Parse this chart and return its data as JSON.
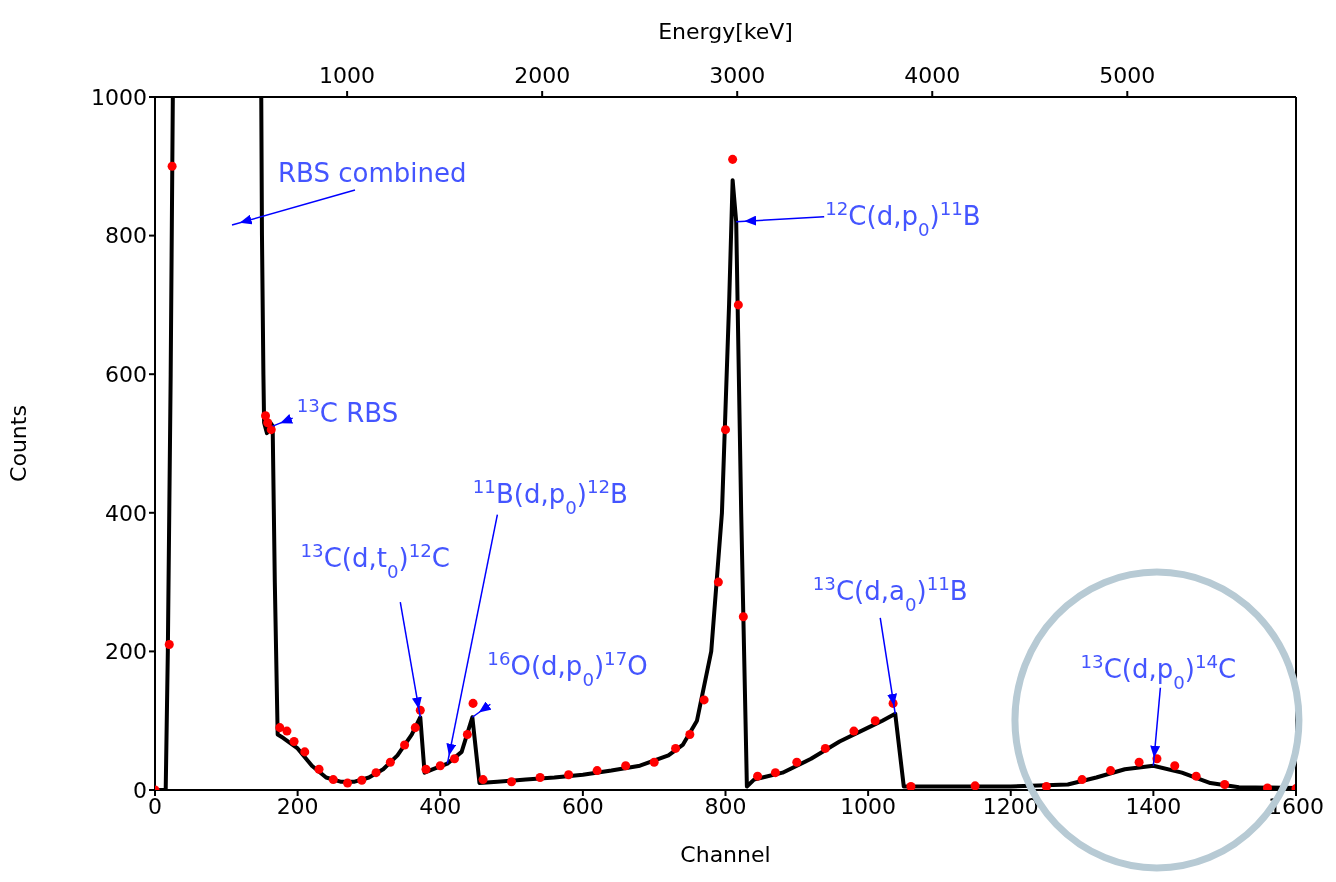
{
  "chart_data": {
    "type": "line",
    "xlabel": "Channel",
    "ylabel": "Counts",
    "x2label": "Energy[keV]",
    "xlim": [
      0,
      1600
    ],
    "xticks": [
      0,
      200,
      400,
      600,
      800,
      1000,
      1200,
      1400,
      1600
    ],
    "ylim": [
      0,
      1000
    ],
    "yticks": [
      0,
      200,
      400,
      600,
      800,
      1000
    ],
    "x2lim": [
      15,
      5865
    ],
    "x2ticks": [
      1000,
      2000,
      3000,
      4000,
      5000
    ],
    "series": [
      {
        "type": "scatter",
        "color": "#ff0000",
        "marker": "circle",
        "x": [
          0,
          20,
          24,
          155,
          158,
          163,
          175,
          185,
          195,
          210,
          230,
          250,
          270,
          290,
          310,
          330,
          350,
          365,
          372,
          380,
          400,
          420,
          438,
          446,
          460,
          500,
          540,
          580,
          620,
          660,
          700,
          730,
          750,
          770,
          790,
          800,
          810,
          818,
          825,
          845,
          870,
          900,
          940,
          980,
          1010,
          1035,
          1060,
          1150,
          1250,
          1300,
          1340,
          1380,
          1405,
          1430,
          1460,
          1500,
          1560,
          1600
        ],
        "values": [
          0,
          210,
          900,
          540,
          530,
          520,
          90,
          85,
          70,
          55,
          30,
          15,
          10,
          14,
          25,
          40,
          65,
          90,
          115,
          30,
          35,
          45,
          80,
          125,
          15,
          12,
          18,
          22,
          28,
          35,
          40,
          60,
          80,
          130,
          300,
          520,
          910,
          700,
          250,
          20,
          25,
          40,
          60,
          85,
          100,
          125,
          5,
          6,
          5,
          15,
          28,
          40,
          45,
          35,
          20,
          8,
          3,
          2
        ]
      },
      {
        "color": "#000000",
        "x": [
          0,
          15,
          18,
          22,
          25,
          80,
          149,
          150,
          152,
          153,
          157,
          162,
          165,
          168,
          172,
          180,
          200,
          220,
          240,
          260,
          280,
          300,
          320,
          340,
          360,
          372,
          378,
          390,
          410,
          430,
          445,
          455,
          480,
          520,
          560,
          600,
          640,
          680,
          720,
          740,
          760,
          780,
          795,
          805,
          810,
          815,
          822,
          830,
          840,
          880,
          920,
          960,
          1000,
          1020,
          1038,
          1050,
          1100,
          1200,
          1280,
          1320,
          1360,
          1400,
          1440,
          1480,
          1520,
          1600
        ],
        "values": [
          0,
          0,
          200,
          600,
          1000,
          null,
          1000,
          800,
          600,
          530,
          515,
          530,
          525,
          300,
          80,
          75,
          60,
          35,
          18,
          12,
          12,
          18,
          30,
          50,
          80,
          105,
          25,
          30,
          38,
          55,
          105,
          10,
          12,
          15,
          18,
          22,
          28,
          35,
          50,
          65,
          100,
          200,
          400,
          700,
          880,
          820,
          400,
          5,
          15,
          25,
          45,
          70,
          90,
          100,
          110,
          5,
          5,
          5,
          8,
          18,
          30,
          35,
          25,
          10,
          4,
          3
        ]
      }
    ],
    "annotations": [
      "RBS combined",
      {
        "text": "$^{12}$C(d,p$_{0}$)$^{11}$B",
        "x": 815,
        "y": 820
      },
      {
        "text": "$^{13}$C RBS",
        "x": 165,
        "y": 525
      },
      {
        "text": "$^{11}$B(d,p$_{0}$)$^{12}$B",
        "x": 410,
        "y": 38
      },
      {
        "text": "$^{13}$C(d,t$_{0}$)$^{12}$C",
        "x": 372,
        "y": 105
      },
      {
        "text": "$^{16}$O(d,p$_{0}$)$^{17}$O",
        "x": 445,
        "y": 105
      },
      {
        "text": "$^{13}$C(d,a$_{0}$)$^{11}$B",
        "x": 1038,
        "y": 110
      },
      {
        "text": "$^{13}$C(d,p$_{0}$)$^{14}$C",
        "x": 1400,
        "y": 35
      }
    ]
  }
}
